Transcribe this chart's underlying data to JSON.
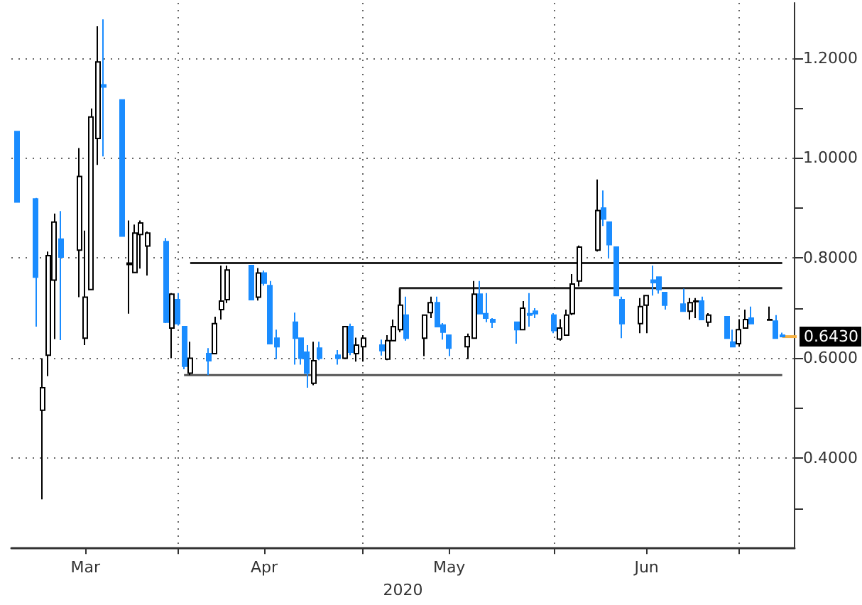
{
  "chart_data": {
    "type": "candlestick",
    "xlabel": "2020",
    "x": [
      "2020-03-06",
      "2020-03-09",
      "2020-03-10",
      "2020-03-11",
      "2020-03-12",
      "2020-03-13",
      "2020-03-16",
      "2020-03-17",
      "2020-03-18",
      "2020-03-19",
      "2020-03-20",
      "2020-03-23",
      "2020-03-24",
      "2020-03-25",
      "2020-03-26",
      "2020-03-27",
      "2020-03-30",
      "2020-03-31",
      "2020-04-01",
      "2020-04-02",
      "2020-04-03",
      "2020-04-06",
      "2020-04-07",
      "2020-04-08",
      "2020-04-09",
      "2020-04-13",
      "2020-04-14",
      "2020-04-15",
      "2020-04-16",
      "2020-04-17",
      "2020-04-20",
      "2020-04-21",
      "2020-04-22",
      "2020-04-23",
      "2020-04-24",
      "2020-04-27",
      "2020-04-28",
      "2020-04-29",
      "2020-04-30",
      "2020-05-01",
      "2020-05-04",
      "2020-05-05",
      "2020-05-06",
      "2020-05-07",
      "2020-05-08",
      "2020-05-11",
      "2020-05-12",
      "2020-05-13",
      "2020-05-14",
      "2020-05-15",
      "2020-05-18",
      "2020-05-19",
      "2020-05-20",
      "2020-05-21",
      "2020-05-22",
      "2020-05-26",
      "2020-05-27",
      "2020-05-28",
      "2020-05-29",
      "2020-06-01",
      "2020-06-02",
      "2020-06-03",
      "2020-06-04",
      "2020-06-05",
      "2020-06-08",
      "2020-06-09",
      "2020-06-10",
      "2020-06-11",
      "2020-06-12",
      "2020-06-15",
      "2020-06-16",
      "2020-06-17",
      "2020-06-18",
      "2020-06-19",
      "2020-06-22",
      "2020-06-23",
      "2020-06-24",
      "2020-06-25",
      "2020-06-26",
      "2020-06-29",
      "2020-06-30",
      "2020-07-01",
      "2020-07-02",
      "2020-07-03",
      "2020-07-06",
      "2020-07-07",
      "2020-07-08"
    ],
    "series": [
      {
        "colors": [
          "#1a8cff",
          "#1a8cff",
          "#ffffff",
          "#ffffff",
          "#ffffff",
          "#1a8cff",
          "#ffffff",
          "#ffffff",
          "#ffffff",
          "#ffffff",
          "#1a8cff",
          "#1a8cff",
          "#ffffff",
          "#ffffff",
          "#ffffff",
          "#ffffff",
          "#1a8cff",
          "#ffffff",
          "#1a8cff",
          "#1a8cff",
          "#ffffff",
          "#1a8cff",
          "#ffffff",
          "#ffffff",
          "#ffffff",
          "#1a8cff",
          "#ffffff",
          "#1a8cff",
          "#1a8cff",
          "#1a8cff",
          "#1a8cff",
          "#1a8cff",
          "#1a8cff",
          "#ffffff",
          "#1a8cff",
          "#1a8cff",
          "#ffffff",
          "#1a8cff",
          "#ffffff",
          "#ffffff",
          "#1a8cff",
          "#ffffff",
          "#ffffff",
          "#ffffff",
          "#1a8cff",
          "#ffffff",
          "#ffffff",
          "#1a8cff",
          "#1a8cff",
          "#1a8cff",
          "#ffffff",
          "#ffffff",
          "#1a8cff",
          "#1a8cff",
          "#1a8cff",
          "#1a8cff",
          "#ffffff",
          "#1a8cff",
          "#1a8cff",
          "#1a8cff",
          "#ffffff",
          "#ffffff",
          "#ffffff",
          "#ffffff",
          "#ffffff",
          "#1a8cff",
          "#1a8cff",
          "#1a8cff",
          "#1a8cff",
          "#ffffff",
          "#ffffff",
          "#1a8cff",
          "#1a8cff",
          "#1a8cff",
          "#1a8cff",
          "#ffffff",
          "#ffffff",
          "#1a8cff",
          "#ffffff",
          "#1a8cff",
          "#1a8cff",
          "#ffffff",
          "#ffffff",
          "#1a8cff",
          "#ffffff",
          "#1a8cff",
          "#1a8cff"
        ],
        "ohlc": [
          [
            1.053,
            1.053,
            0.912,
            0.912
          ],
          [
            0.918,
            0.92,
            0.663,
            0.762
          ],
          [
            0.496,
            0.6,
            0.318,
            0.541
          ],
          [
            0.606,
            0.813,
            0.564,
            0.805
          ],
          [
            0.756,
            0.889,
            0.638,
            0.872
          ],
          [
            0.838,
            0.894,
            0.636,
            0.802
          ],
          [
            0.816,
            1.02,
            0.722,
            0.963
          ],
          [
            0.64,
            0.855,
            0.626,
            0.722
          ],
          [
            0.737,
            1.099,
            0.737,
            1.082
          ],
          [
            1.039,
            1.263,
            0.986,
            1.192
          ],
          [
            1.146,
            1.277,
            1.003,
            1.142
          ],
          [
            1.116,
            1.116,
            0.844,
            0.844
          ],
          [
            0.787,
            0.875,
            0.689,
            0.79
          ],
          [
            0.771,
            0.867,
            0.77,
            0.85
          ],
          [
            0.847,
            0.875,
            0.779,
            0.87
          ],
          [
            0.824,
            0.853,
            0.765,
            0.85
          ],
          [
            0.833,
            0.84,
            0.67,
            0.672
          ],
          [
            0.66,
            0.73,
            0.6,
            0.728
          ],
          [
            0.717,
            0.73,
            0.665,
            0.669
          ],
          [
            0.663,
            0.663,
            0.578,
            0.584
          ],
          [
            0.57,
            0.633,
            0.566,
            0.6
          ],
          [
            0.609,
            0.62,
            0.566,
            0.595
          ],
          [
            0.609,
            0.683,
            0.609,
            0.669
          ],
          [
            0.697,
            0.785,
            0.677,
            0.714
          ],
          [
            0.717,
            0.785,
            0.71,
            0.776
          ],
          [
            0.785,
            0.785,
            0.717,
            0.717
          ],
          [
            0.722,
            0.78,
            0.715,
            0.77
          ],
          [
            0.77,
            0.775,
            0.745,
            0.75
          ],
          [
            0.745,
            0.754,
            0.629,
            0.629
          ],
          [
            0.64,
            0.657,
            0.598,
            0.623
          ],
          [
            0.672,
            0.691,
            0.587,
            0.64
          ],
          [
            0.64,
            0.64,
            0.587,
            0.6
          ],
          [
            0.612,
            0.626,
            0.541,
            0.57
          ],
          [
            0.55,
            0.633,
            0.546,
            0.595
          ],
          [
            0.62,
            0.633,
            0.596,
            0.6
          ],
          [
            0.606,
            0.616,
            0.587,
            0.6
          ],
          [
            0.6,
            0.663,
            0.598,
            0.663
          ],
          [
            0.663,
            0.669,
            0.606,
            0.612
          ],
          [
            0.609,
            0.641,
            0.593,
            0.626
          ],
          [
            0.623,
            0.646,
            0.593,
            0.64
          ],
          [
            0.626,
            0.637,
            0.605,
            0.615
          ],
          [
            0.598,
            0.646,
            0.596,
            0.635
          ],
          [
            0.635,
            0.677,
            0.635,
            0.663
          ],
          [
            0.657,
            0.738,
            0.652,
            0.706
          ],
          [
            0.686,
            0.723,
            0.635,
            0.64
          ],
          [
            0.64,
            0.686,
            0.604,
            0.686
          ],
          [
            0.691,
            0.723,
            0.68,
            0.711
          ],
          [
            0.711,
            0.723,
            0.663,
            0.663
          ],
          [
            0.666,
            0.67,
            0.637,
            0.652
          ],
          [
            0.646,
            0.646,
            0.604,
            0.62
          ],
          [
            0.623,
            0.649,
            0.598,
            0.643
          ],
          [
            0.64,
            0.754,
            0.64,
            0.728
          ],
          [
            0.728,
            0.754,
            0.689,
            0.689
          ],
          [
            0.689,
            0.73,
            0.672,
            0.68
          ],
          [
            0.677,
            0.68,
            0.66,
            0.672
          ],
          [
            0.672,
            0.672,
            0.629,
            0.657
          ],
          [
            0.657,
            0.714,
            0.657,
            0.7
          ],
          [
            0.689,
            0.73,
            0.663,
            0.686
          ],
          [
            0.694,
            0.7,
            0.68,
            0.689
          ],
          [
            0.686,
            0.69,
            0.65,
            0.655
          ],
          [
            0.638,
            0.678,
            0.635,
            0.66
          ],
          [
            0.646,
            0.697,
            0.646,
            0.686
          ],
          [
            0.689,
            0.768,
            0.686,
            0.748
          ],
          [
            0.754,
            0.825,
            0.743,
            0.822
          ],
          [
            0.816,
            0.957,
            0.813,
            0.895
          ],
          [
            0.9,
            0.935,
            0.864,
            0.878
          ],
          [
            0.872,
            0.872,
            0.8,
            0.827
          ],
          [
            0.822,
            0.822,
            0.725,
            0.725
          ],
          [
            0.717,
            0.723,
            0.64,
            0.669
          ],
          [
            0.669,
            0.72,
            0.65,
            0.703
          ],
          [
            0.706,
            0.725,
            0.65,
            0.725
          ],
          [
            0.756,
            0.785,
            0.725,
            0.751
          ],
          [
            0.762,
            0.762,
            0.729,
            0.737
          ],
          [
            0.731,
            0.731,
            0.697,
            0.706
          ],
          [
            0.708,
            0.739,
            0.694,
            0.694
          ],
          [
            0.694,
            0.72,
            0.677,
            0.711
          ],
          [
            0.713,
            0.72,
            0.68,
            0.714
          ],
          [
            0.714,
            0.723,
            0.677,
            0.677
          ],
          [
            0.672,
            0.69,
            0.663,
            0.686
          ],
          [
            0.683,
            0.683,
            0.64,
            0.64
          ],
          [
            0.632,
            0.657,
            0.623,
            0.623
          ],
          [
            0.629,
            0.678,
            0.623,
            0.657
          ],
          [
            0.66,
            0.697,
            0.66,
            0.677
          ],
          [
            0.68,
            0.703,
            0.669,
            0.669
          ],
          [
            0.676,
            0.703,
            0.676,
            0.677
          ],
          [
            0.674,
            0.686,
            0.64,
            0.64
          ],
          [
            0.646,
            0.651,
            0.643,
            0.643
          ]
        ]
      },
      {
        "type": "line",
        "color": "#222222",
        "x": [
          "2020-04-03",
          "2020-07-08"
        ],
        "values": [
          0.79,
          0.79
        ]
      },
      {
        "type": "line",
        "color": "#222222",
        "x": [
          "2020-05-07",
          "2020-05-07",
          "2020-07-08"
        ],
        "values": [
          0.705,
          0.74,
          0.74
        ]
      },
      {
        "type": "line",
        "color": "#555555",
        "x": [
          "2020-04-02",
          "2020-07-08"
        ],
        "values": [
          0.566,
          0.566
        ]
      }
    ],
    "ylim": [
      0.22,
      1.31
    ],
    "yticks": [
      {
        "value": 0.3,
        "label": null
      },
      {
        "value": 0.4,
        "label": "0.4000"
      },
      {
        "value": 0.5,
        "label": null
      },
      {
        "value": 0.6,
        "label": "0.6000"
      },
      {
        "value": 0.7,
        "label": null
      },
      {
        "value": 0.8,
        "label": "0.8000"
      },
      {
        "value": 0.9,
        "label": null
      },
      {
        "value": 1.0,
        "label": "1.0000"
      },
      {
        "value": 1.1,
        "label": null
      },
      {
        "value": 1.2,
        "label": "1.2000"
      }
    ],
    "xticks": [
      {
        "value": "2020-03-17",
        "label": "Mar"
      },
      {
        "value": "2020-04-01",
        "label": null
      },
      {
        "value": "2020-04-15",
        "label": "Apr"
      },
      {
        "value": "2020-05-01",
        "label": null
      },
      {
        "value": "2020-05-15",
        "label": "May"
      },
      {
        "value": "2020-06-01",
        "label": null
      },
      {
        "value": "2020-06-16",
        "label": "Jun"
      },
      {
        "value": "2020-07-01",
        "label": null
      }
    ],
    "grid": true,
    "xlim": [
      "2020-03-05",
      "2020-07-10"
    ],
    "annotations": [
      "0.6430"
    ]
  }
}
